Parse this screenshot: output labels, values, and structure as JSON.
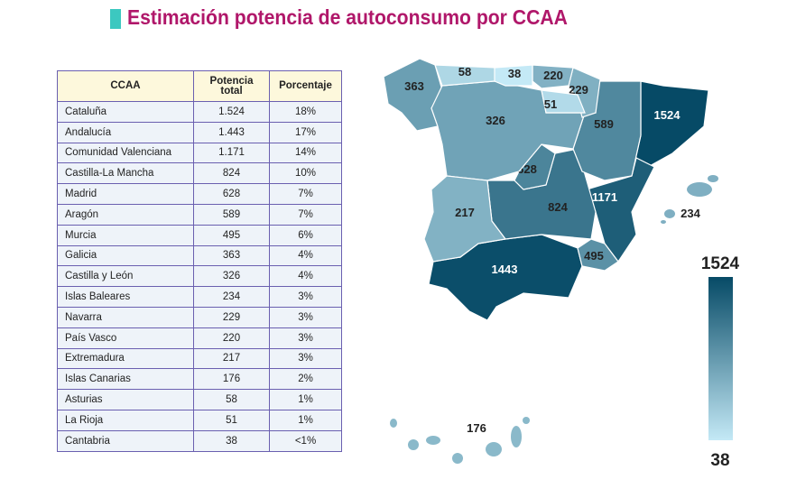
{
  "title": "Estimación potencia de autoconsumo por CCAA",
  "table": {
    "headers": [
      "CCAA",
      "Potencia total",
      "Porcentaje"
    ],
    "rows": [
      [
        "Cataluña",
        "1.524",
        "18%"
      ],
      [
        "Andalucía",
        "1.443",
        "17%"
      ],
      [
        "Comunidad Valenciana",
        "1.171",
        "14%"
      ],
      [
        "Castilla-La Mancha",
        "824",
        "10%"
      ],
      [
        "Madrid",
        "628",
        "7%"
      ],
      [
        "Aragón",
        "589",
        "7%"
      ],
      [
        "Murcia",
        "495",
        "6%"
      ],
      [
        "Galicia",
        "363",
        "4%"
      ],
      [
        "Castilla y León",
        "326",
        "4%"
      ],
      [
        "Islas Baleares",
        "234",
        "3%"
      ],
      [
        "Navarra",
        "229",
        "3%"
      ],
      [
        "País Vasco",
        "220",
        "3%"
      ],
      [
        "Extremadura",
        "217",
        "3%"
      ],
      [
        "Islas Canarias",
        "176",
        "2%"
      ],
      [
        "Asturias",
        "58",
        "1%"
      ],
      [
        "La Rioja",
        "51",
        "1%"
      ],
      [
        "Cantabria",
        "38",
        "<1%"
      ]
    ]
  },
  "chart_data": {
    "type": "choropleth map",
    "regions": [
      {
        "name": "Cataluña",
        "value": 1524
      },
      {
        "name": "Andalucía",
        "value": 1443
      },
      {
        "name": "Comunidad Valenciana",
        "value": 1171
      },
      {
        "name": "Castilla-La Mancha",
        "value": 824
      },
      {
        "name": "Madrid",
        "value": 628
      },
      {
        "name": "Aragón",
        "value": 589
      },
      {
        "name": "Murcia",
        "value": 495
      },
      {
        "name": "Galicia",
        "value": 363
      },
      {
        "name": "Castilla y León",
        "value": 326
      },
      {
        "name": "Islas Baleares",
        "value": 234
      },
      {
        "name": "Navarra",
        "value": 229
      },
      {
        "name": "País Vasco",
        "value": 220
      },
      {
        "name": "Extremadura",
        "value": 217
      },
      {
        "name": "Islas Canarias",
        "value": 176
      },
      {
        "name": "Asturias",
        "value": 58
      },
      {
        "name": "La Rioja",
        "value": 51
      },
      {
        "name": "Cantabria",
        "value": 38
      }
    ],
    "legend": {
      "max": "1524",
      "min": "38",
      "color_max": "#064a66",
      "color_min": "#c4e9f6"
    }
  }
}
